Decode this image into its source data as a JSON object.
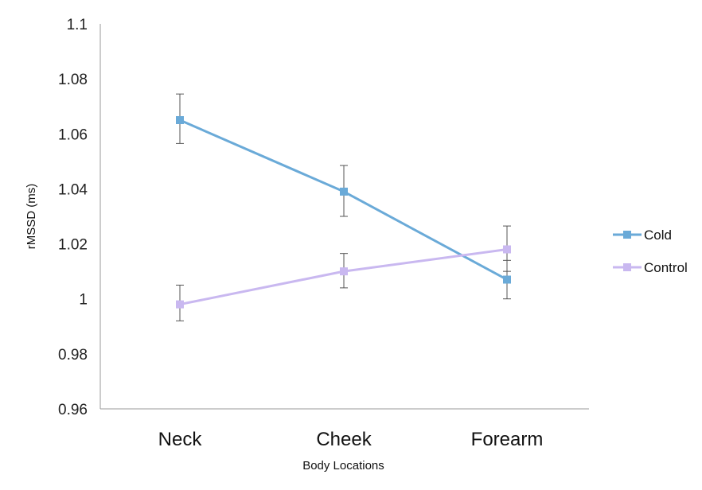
{
  "chart_data": {
    "type": "line",
    "title": "",
    "xlabel": "Body Locations",
    "ylabel": "rMSSD (ms)",
    "categories": [
      "Neck",
      "Cheek",
      "Forearm"
    ],
    "ylim": [
      0.96,
      1.1
    ],
    "yticks": [
      0.96,
      0.98,
      1,
      1.02,
      1.04,
      1.06,
      1.08,
      1.1
    ],
    "ytick_labels": [
      "0.96",
      "0.98",
      "1",
      "1.02",
      "1.04",
      "1.06",
      "1.08",
      "1.1"
    ],
    "grid": false,
    "legend_position": "right",
    "error_bars": true,
    "series": [
      {
        "name": "Cold",
        "color": "#6aaad8",
        "values": [
          1.065,
          1.039,
          1.007
        ],
        "err_low": [
          1.0565,
          1.03,
          1.0
        ],
        "err_high": [
          1.0745,
          1.0485,
          1.014
        ]
      },
      {
        "name": "Control",
        "color": "#c9b8f0",
        "values": [
          0.998,
          1.01,
          1.018
        ],
        "err_low": [
          0.992,
          1.004,
          1.01
        ],
        "err_high": [
          1.005,
          1.0165,
          1.0265
        ]
      }
    ]
  }
}
